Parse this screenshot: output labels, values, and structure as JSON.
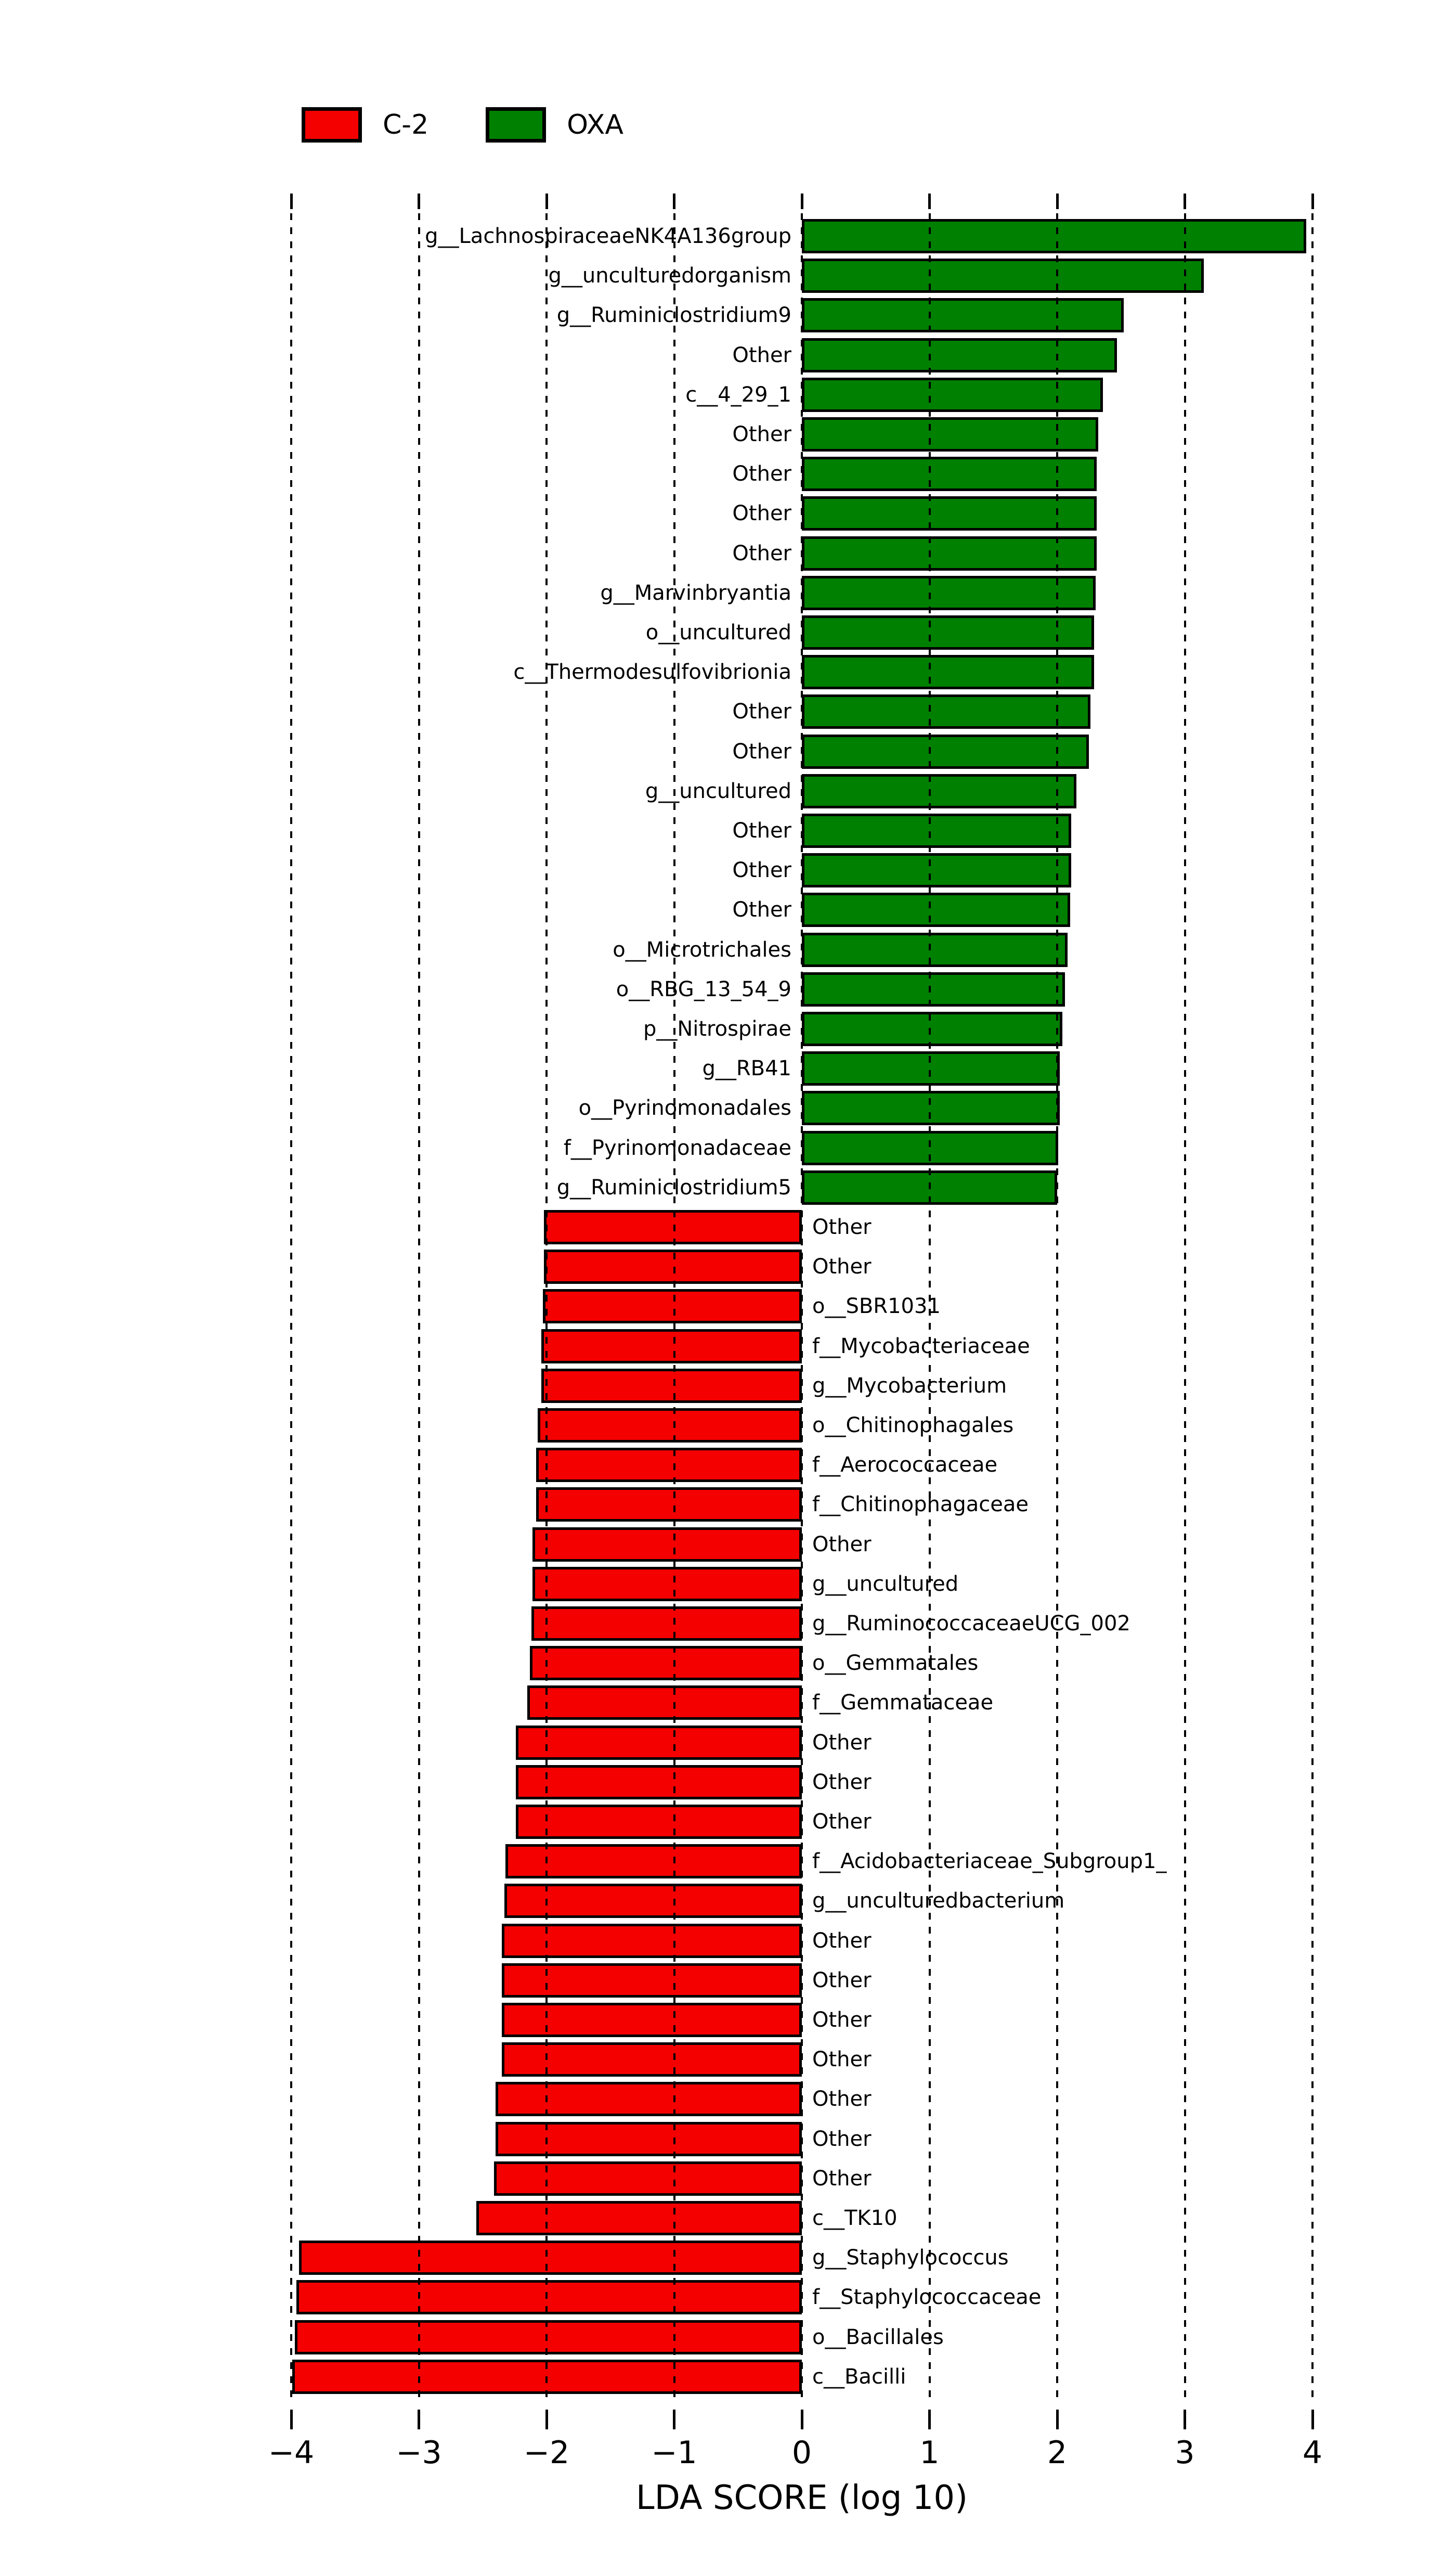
{
  "legend": {
    "items": [
      {
        "label": "C-2",
        "color": "#f40000"
      },
      {
        "label": "OXA",
        "color": "#008000"
      }
    ]
  },
  "axis": {
    "title": "LDA SCORE (log 10)",
    "tick_labels": [
      "−4",
      "−3",
      "−2",
      "−1",
      "0",
      "1",
      "2",
      "3",
      "4"
    ],
    "tick_values": [
      -4,
      -3,
      -2,
      -1,
      0,
      1,
      2,
      3,
      4
    ],
    "xmin": -4,
    "xmax": 4
  },
  "chart_data": {
    "type": "bar",
    "orientation": "horizontal",
    "title": "",
    "xlabel": "LDA SCORE (log 10)",
    "xlim": [
      -4,
      4
    ],
    "grid": "vertical-dotted",
    "legend_position": "top-left",
    "series_colors": {
      "OXA": "#008000",
      "C-2": "#f40000"
    },
    "bars": [
      {
        "label": "g__LachnospiraceaeNK4A136group",
        "value": 3.95,
        "group": "OXA"
      },
      {
        "label": "g__unculturedorganism",
        "value": 3.15,
        "group": "OXA"
      },
      {
        "label": "g__Ruminiclostridium9",
        "value": 2.52,
        "group": "OXA"
      },
      {
        "label": "Other",
        "value": 2.47,
        "group": "OXA"
      },
      {
        "label": "c__4_29_1",
        "value": 2.36,
        "group": "OXA"
      },
      {
        "label": "Other",
        "value": 2.32,
        "group": "OXA"
      },
      {
        "label": "Other",
        "value": 2.31,
        "group": "OXA"
      },
      {
        "label": "Other",
        "value": 2.31,
        "group": "OXA"
      },
      {
        "label": "Other",
        "value": 2.31,
        "group": "OXA"
      },
      {
        "label": "g__Marvinbryantia",
        "value": 2.3,
        "group": "OXA"
      },
      {
        "label": "o__uncultured",
        "value": 2.29,
        "group": "OXA"
      },
      {
        "label": "c__Thermodesulfovibrionia",
        "value": 2.29,
        "group": "OXA"
      },
      {
        "label": "Other",
        "value": 2.26,
        "group": "OXA"
      },
      {
        "label": "Other",
        "value": 2.25,
        "group": "OXA"
      },
      {
        "label": "g__uncultured",
        "value": 2.15,
        "group": "OXA"
      },
      {
        "label": "Other",
        "value": 2.11,
        "group": "OXA"
      },
      {
        "label": "Other",
        "value": 2.11,
        "group": "OXA"
      },
      {
        "label": "Other",
        "value": 2.1,
        "group": "OXA"
      },
      {
        "label": "o__Microtrichales",
        "value": 2.08,
        "group": "OXA"
      },
      {
        "label": "o__RBG_13_54_9",
        "value": 2.06,
        "group": "OXA"
      },
      {
        "label": "p__Nitrospirae",
        "value": 2.04,
        "group": "OXA"
      },
      {
        "label": "g__RB41",
        "value": 2.02,
        "group": "OXA"
      },
      {
        "label": "o__Pyrinomonadales",
        "value": 2.02,
        "group": "OXA"
      },
      {
        "label": "f__Pyrinomonadaceae",
        "value": 2.01,
        "group": "OXA"
      },
      {
        "label": "g__Ruminiclostridium5",
        "value": 2.0,
        "group": "OXA"
      },
      {
        "label": "Other",
        "value": -2.02,
        "group": "C-2"
      },
      {
        "label": "Other",
        "value": -2.02,
        "group": "C-2"
      },
      {
        "label": "o__SBR1031",
        "value": -2.03,
        "group": "C-2"
      },
      {
        "label": "f__Mycobacteriaceae",
        "value": -2.04,
        "group": "C-2"
      },
      {
        "label": "g__Mycobacterium",
        "value": -2.04,
        "group": "C-2"
      },
      {
        "label": "o__Chitinophagales",
        "value": -2.07,
        "group": "C-2"
      },
      {
        "label": "f__Aerococcaceae",
        "value": -2.08,
        "group": "C-2"
      },
      {
        "label": "f__Chitinophagaceae",
        "value": -2.08,
        "group": "C-2"
      },
      {
        "label": "Other",
        "value": -2.11,
        "group": "C-2"
      },
      {
        "label": "g__uncultured",
        "value": -2.11,
        "group": "C-2"
      },
      {
        "label": "g__RuminococcaceaeUCG_002",
        "value": -2.12,
        "group": "C-2"
      },
      {
        "label": "o__Gemmatales",
        "value": -2.13,
        "group": "C-2"
      },
      {
        "label": "f__Gemmataceae",
        "value": -2.15,
        "group": "C-2"
      },
      {
        "label": "Other",
        "value": -2.24,
        "group": "C-2"
      },
      {
        "label": "Other",
        "value": -2.24,
        "group": "C-2"
      },
      {
        "label": "Other",
        "value": -2.24,
        "group": "C-2"
      },
      {
        "label": "f__Acidobacteriaceae_Subgroup1_",
        "value": -2.32,
        "group": "C-2"
      },
      {
        "label": "g__unculturedbacterium",
        "value": -2.33,
        "group": "C-2"
      },
      {
        "label": "Other",
        "value": -2.35,
        "group": "C-2"
      },
      {
        "label": "Other",
        "value": -2.35,
        "group": "C-2"
      },
      {
        "label": "Other",
        "value": -2.35,
        "group": "C-2"
      },
      {
        "label": "Other",
        "value": -2.35,
        "group": "C-2"
      },
      {
        "label": "Other",
        "value": -2.4,
        "group": "C-2"
      },
      {
        "label": "Other",
        "value": -2.4,
        "group": "C-2"
      },
      {
        "label": "Other",
        "value": -2.41,
        "group": "C-2"
      },
      {
        "label": "c__TK10",
        "value": -2.55,
        "group": "C-2"
      },
      {
        "label": "g__Staphylococcus",
        "value": -3.94,
        "group": "C-2"
      },
      {
        "label": "f__Staphylococcaceae",
        "value": -3.96,
        "group": "C-2"
      },
      {
        "label": "o__Bacillales",
        "value": -3.97,
        "group": "C-2"
      },
      {
        "label": "c__Bacilli",
        "value": -3.99,
        "group": "C-2"
      }
    ]
  }
}
